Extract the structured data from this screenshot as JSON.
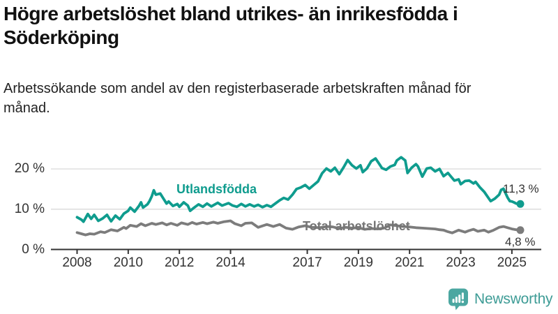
{
  "header": {
    "title": "Högre arbetslöshet bland utrikes- än inrikesfödda i Söderköping",
    "subtitle": "Arbetssökande som andel av den registerbaserade arbetskraften månad för månad."
  },
  "chart_data": {
    "type": "line",
    "unit": "%",
    "grid": true,
    "x_axis": {
      "tick_labels": [
        "2008",
        "2010",
        "2012",
        "2014",
        "2017",
        "2019",
        "2021",
        "2023",
        "2025"
      ],
      "range": [
        2008,
        2025.33
      ]
    },
    "y_axis": {
      "ticks": [
        {
          "value": 0,
          "label": "0 %"
        },
        {
          "value": 10,
          "label": "10 %"
        },
        {
          "value": 20,
          "label": "20 %"
        }
      ],
      "range": [
        0,
        24
      ]
    },
    "series": [
      {
        "name": "Utlandsfödda",
        "color": "#0F9C8E",
        "end_label": "11,3 %",
        "end_value": 11.3,
        "points": [
          [
            2008.0,
            8.0
          ],
          [
            2008.17,
            7.4
          ],
          [
            2008.25,
            6.9
          ],
          [
            2008.42,
            8.8
          ],
          [
            2008.55,
            7.6
          ],
          [
            2008.67,
            8.6
          ],
          [
            2008.83,
            7.1
          ],
          [
            2009.0,
            7.7
          ],
          [
            2009.17,
            8.6
          ],
          [
            2009.33,
            7.0
          ],
          [
            2009.5,
            8.4
          ],
          [
            2009.67,
            7.5
          ],
          [
            2009.83,
            8.9
          ],
          [
            2010.0,
            9.6
          ],
          [
            2010.08,
            10.4
          ],
          [
            2010.25,
            9.4
          ],
          [
            2010.42,
            10.8
          ],
          [
            2010.5,
            11.7
          ],
          [
            2010.58,
            10.4
          ],
          [
            2010.75,
            11.2
          ],
          [
            2010.83,
            12.0
          ],
          [
            2010.92,
            13.2
          ],
          [
            2011.0,
            14.7
          ],
          [
            2011.08,
            13.6
          ],
          [
            2011.25,
            13.9
          ],
          [
            2011.42,
            12.2
          ],
          [
            2011.5,
            11.4
          ],
          [
            2011.58,
            11.9
          ],
          [
            2011.75,
            10.8
          ],
          [
            2011.92,
            11.3
          ],
          [
            2012.0,
            10.6
          ],
          [
            2012.17,
            11.7
          ],
          [
            2012.33,
            10.9
          ],
          [
            2012.42,
            9.6
          ],
          [
            2012.58,
            10.4
          ],
          [
            2012.75,
            11.2
          ],
          [
            2012.92,
            10.6
          ],
          [
            2013.08,
            11.4
          ],
          [
            2013.25,
            10.7
          ],
          [
            2013.5,
            11.6
          ],
          [
            2013.67,
            10.9
          ],
          [
            2013.92,
            11.5
          ],
          [
            2014.08,
            10.9
          ],
          [
            2014.25,
            10.6
          ],
          [
            2014.42,
            11.3
          ],
          [
            2014.58,
            10.7
          ],
          [
            2014.75,
            11.2
          ],
          [
            2014.92,
            10.7
          ],
          [
            2015.08,
            11.1
          ],
          [
            2015.25,
            10.5
          ],
          [
            2015.42,
            11.0
          ],
          [
            2015.58,
            10.6
          ],
          [
            2015.75,
            11.4
          ],
          [
            2015.92,
            12.2
          ],
          [
            2016.08,
            12.8
          ],
          [
            2016.25,
            12.4
          ],
          [
            2016.42,
            13.6
          ],
          [
            2016.58,
            15.0
          ],
          [
            2016.75,
            15.4
          ],
          [
            2016.92,
            16.0
          ],
          [
            2017.08,
            15.1
          ],
          [
            2017.25,
            16.0
          ],
          [
            2017.42,
            16.9
          ],
          [
            2017.58,
            18.9
          ],
          [
            2017.75,
            20.1
          ],
          [
            2017.92,
            19.4
          ],
          [
            2018.08,
            20.3
          ],
          [
            2018.25,
            18.7
          ],
          [
            2018.42,
            20.4
          ],
          [
            2018.58,
            22.2
          ],
          [
            2018.75,
            20.9
          ],
          [
            2018.92,
            20.1
          ],
          [
            2019.08,
            20.9
          ],
          [
            2019.17,
            19.2
          ],
          [
            2019.33,
            20.1
          ],
          [
            2019.5,
            21.9
          ],
          [
            2019.67,
            22.6
          ],
          [
            2019.83,
            21.1
          ],
          [
            2019.92,
            20.2
          ],
          [
            2020.08,
            19.8
          ],
          [
            2020.25,
            20.6
          ],
          [
            2020.42,
            21.0
          ],
          [
            2020.5,
            22.1
          ],
          [
            2020.67,
            22.9
          ],
          [
            2020.83,
            22.1
          ],
          [
            2020.92,
            19.0
          ],
          [
            2021.08,
            20.3
          ],
          [
            2021.25,
            21.2
          ],
          [
            2021.33,
            20.6
          ],
          [
            2021.5,
            18.1
          ],
          [
            2021.67,
            20.1
          ],
          [
            2021.83,
            20.3
          ],
          [
            2022.0,
            19.4
          ],
          [
            2022.17,
            20.0
          ],
          [
            2022.33,
            18.2
          ],
          [
            2022.5,
            19.0
          ],
          [
            2022.58,
            18.4
          ],
          [
            2022.75,
            17.1
          ],
          [
            2022.92,
            17.4
          ],
          [
            2023.0,
            16.2
          ],
          [
            2023.17,
            17.0
          ],
          [
            2023.33,
            17.1
          ],
          [
            2023.5,
            16.4
          ],
          [
            2023.58,
            16.8
          ],
          [
            2023.75,
            15.4
          ],
          [
            2023.92,
            14.3
          ],
          [
            2024.08,
            12.8
          ],
          [
            2024.17,
            12.0
          ],
          [
            2024.33,
            12.6
          ],
          [
            2024.5,
            13.6
          ],
          [
            2024.58,
            14.8
          ],
          [
            2024.67,
            15.1
          ],
          [
            2024.83,
            12.9
          ],
          [
            2024.92,
            12.0
          ],
          [
            2025.0,
            11.9
          ],
          [
            2025.08,
            11.7
          ],
          [
            2025.17,
            11.4
          ],
          [
            2025.33,
            11.3
          ]
        ]
      },
      {
        "name": "Total arbetslöshet",
        "color": "#7C7C7C",
        "end_label": "4,8 %",
        "end_value": 4.8,
        "points": [
          [
            2008.0,
            4.2
          ],
          [
            2008.17,
            3.9
          ],
          [
            2008.33,
            3.6
          ],
          [
            2008.5,
            3.9
          ],
          [
            2008.67,
            3.8
          ],
          [
            2008.92,
            4.4
          ],
          [
            2009.08,
            4.2
          ],
          [
            2009.33,
            4.9
          ],
          [
            2009.58,
            4.6
          ],
          [
            2009.83,
            5.5
          ],
          [
            2009.92,
            5.2
          ],
          [
            2010.08,
            6.0
          ],
          [
            2010.33,
            5.7
          ],
          [
            2010.5,
            6.4
          ],
          [
            2010.67,
            5.9
          ],
          [
            2010.92,
            6.5
          ],
          [
            2011.08,
            6.2
          ],
          [
            2011.33,
            6.6
          ],
          [
            2011.5,
            6.1
          ],
          [
            2011.67,
            6.5
          ],
          [
            2011.92,
            6.0
          ],
          [
            2012.08,
            6.6
          ],
          [
            2012.33,
            6.2
          ],
          [
            2012.5,
            6.7
          ],
          [
            2012.67,
            6.3
          ],
          [
            2012.92,
            6.7
          ],
          [
            2013.08,
            6.4
          ],
          [
            2013.33,
            6.8
          ],
          [
            2013.5,
            6.5
          ],
          [
            2013.75,
            6.9
          ],
          [
            2014.0,
            7.1
          ],
          [
            2014.17,
            6.4
          ],
          [
            2014.42,
            5.9
          ],
          [
            2014.58,
            6.5
          ],
          [
            2014.83,
            6.6
          ],
          [
            2015.08,
            5.5
          ],
          [
            2015.42,
            6.2
          ],
          [
            2015.67,
            5.7
          ],
          [
            2015.92,
            6.2
          ],
          [
            2016.17,
            5.3
          ],
          [
            2016.42,
            5.0
          ],
          [
            2016.67,
            5.6
          ],
          [
            2016.92,
            5.9
          ],
          [
            2017.17,
            5.5
          ],
          [
            2017.5,
            5.4
          ],
          [
            2017.75,
            5.7
          ],
          [
            2018.0,
            5.6
          ],
          [
            2018.25,
            5.2
          ],
          [
            2018.5,
            5.5
          ],
          [
            2018.75,
            5.3
          ],
          [
            2019.0,
            5.4
          ],
          [
            2019.25,
            5.0
          ],
          [
            2019.5,
            5.2
          ],
          [
            2019.75,
            5.1
          ],
          [
            2020.0,
            5.3
          ],
          [
            2020.25,
            6.1
          ],
          [
            2020.5,
            5.9
          ],
          [
            2020.75,
            5.7
          ],
          [
            2021.0,
            5.6
          ],
          [
            2021.25,
            5.4
          ],
          [
            2021.5,
            5.3
          ],
          [
            2021.75,
            5.2
          ],
          [
            2022.0,
            5.1
          ],
          [
            2022.17,
            4.9
          ],
          [
            2022.33,
            4.8
          ],
          [
            2022.5,
            4.4
          ],
          [
            2022.67,
            4.1
          ],
          [
            2022.92,
            4.8
          ],
          [
            2023.17,
            4.3
          ],
          [
            2023.33,
            4.7
          ],
          [
            2023.5,
            5.0
          ],
          [
            2023.67,
            4.5
          ],
          [
            2023.92,
            4.8
          ],
          [
            2024.08,
            4.3
          ],
          [
            2024.25,
            4.7
          ],
          [
            2024.5,
            5.5
          ],
          [
            2024.67,
            5.7
          ],
          [
            2024.83,
            5.4
          ],
          [
            2025.0,
            5.1
          ],
          [
            2025.17,
            4.9
          ],
          [
            2025.33,
            4.8
          ]
        ]
      }
    ]
  },
  "branding": {
    "name": "Newsworthy",
    "color": "#3E9C96",
    "icon_color": "#4BA7A1",
    "icon": "bar-chart-speech-bubble-icon"
  }
}
